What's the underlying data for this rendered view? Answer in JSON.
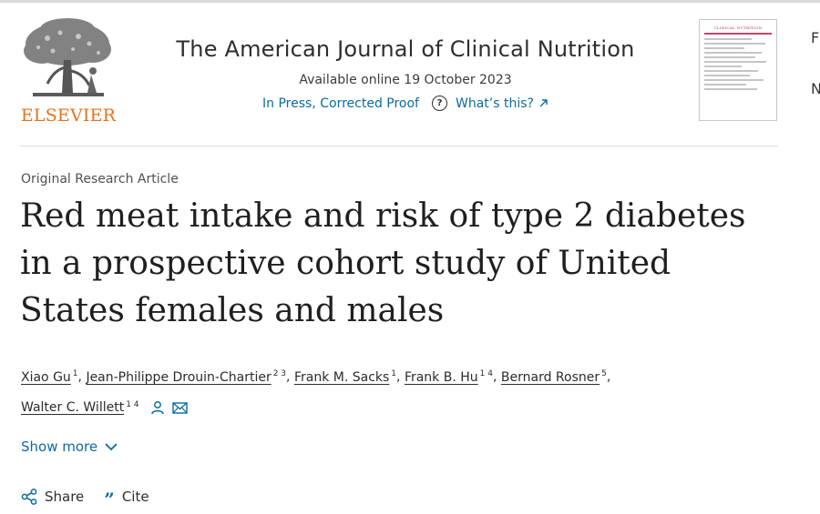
{
  "header": {
    "publisher": "ELSEVIER",
    "journal_title": "The American Journal of Clinical Nutrition",
    "available_online": "Available online 19 October 2023",
    "in_press_label": "In Press, Corrected Proof",
    "whats_this_label": "What’s this?",
    "cover_caption": "CLINICAL NUTRITION"
  },
  "edge_chars": [
    "F",
    "N"
  ],
  "article": {
    "type": "Original Research Article",
    "title_lines": [
      "Red meat intake and risk of type 2 diabetes",
      "in a prospective cohort study of United",
      "States females and males"
    ]
  },
  "authors": [
    {
      "name": "Xiao Gu",
      "sup": "1"
    },
    {
      "name": "Jean-Philippe Drouin-Chartier",
      "sup": "2 3"
    },
    {
      "name": "Frank M. Sacks",
      "sup": "1"
    },
    {
      "name": "Frank B. Hu",
      "sup": "1 4"
    },
    {
      "name": "Bernard Rosner",
      "sup": "5"
    },
    {
      "name": "Walter C. Willett",
      "sup": "1 4"
    }
  ],
  "author_separator": ",",
  "show_more_label": "Show more",
  "actions": {
    "share_label": "Share",
    "cite_label": "Cite"
  },
  "icons": {
    "help": "question-circle-icon",
    "external": "external-link-icon",
    "person": "person-icon",
    "email": "envelope-icon",
    "chevron": "chevron-down-icon",
    "share": "share-icon",
    "cite": "quote-icon"
  },
  "colors": {
    "link": "#0c6a9f",
    "elsevier_orange": "#e9711c",
    "text": "#1f1f1f"
  }
}
